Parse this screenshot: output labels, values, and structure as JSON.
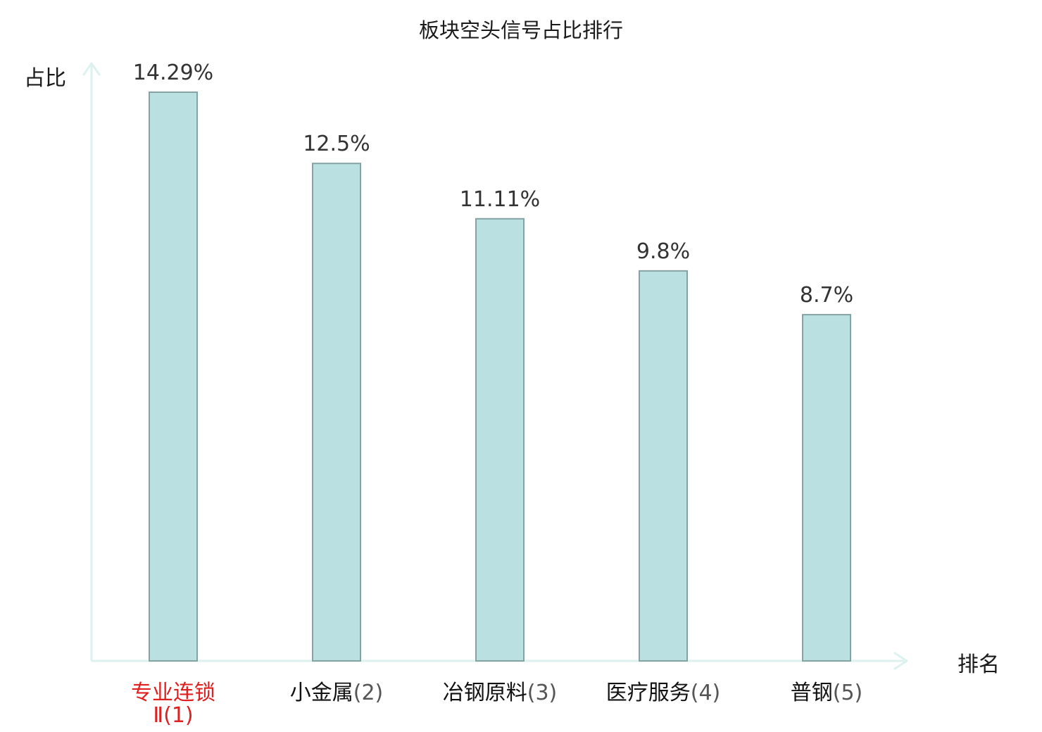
{
  "chart_data": {
    "type": "bar",
    "title": "板块空头信号占比排行",
    "ylabel": "占比",
    "xlabel": "排名",
    "categories": [
      {
        "name": "专业连锁Ⅱ",
        "rank": "(1)",
        "highlight": true
      },
      {
        "name": "小金属",
        "rank": "(2)",
        "highlight": false
      },
      {
        "name": "冶钢原料",
        "rank": "(3)",
        "highlight": false
      },
      {
        "name": "医疗服务",
        "rank": "(4)",
        "highlight": false
      },
      {
        "name": "普钢",
        "rank": "(5)",
        "highlight": false
      }
    ],
    "values": [
      14.29,
      12.5,
      11.11,
      9.8,
      8.7
    ],
    "value_labels": [
      "14.29%",
      "12.5%",
      "11.11%",
      "9.8%",
      "8.7%"
    ],
    "ylim": [
      0,
      14.29
    ],
    "grid": false,
    "colors": {
      "bar_fill": "#bbe0e2",
      "bar_stroke": "#86a3a4",
      "axis": "#ddf1ee",
      "highlight_text": "#e01f1f",
      "normal_text": "#111111",
      "rank_text": "#555555"
    }
  }
}
